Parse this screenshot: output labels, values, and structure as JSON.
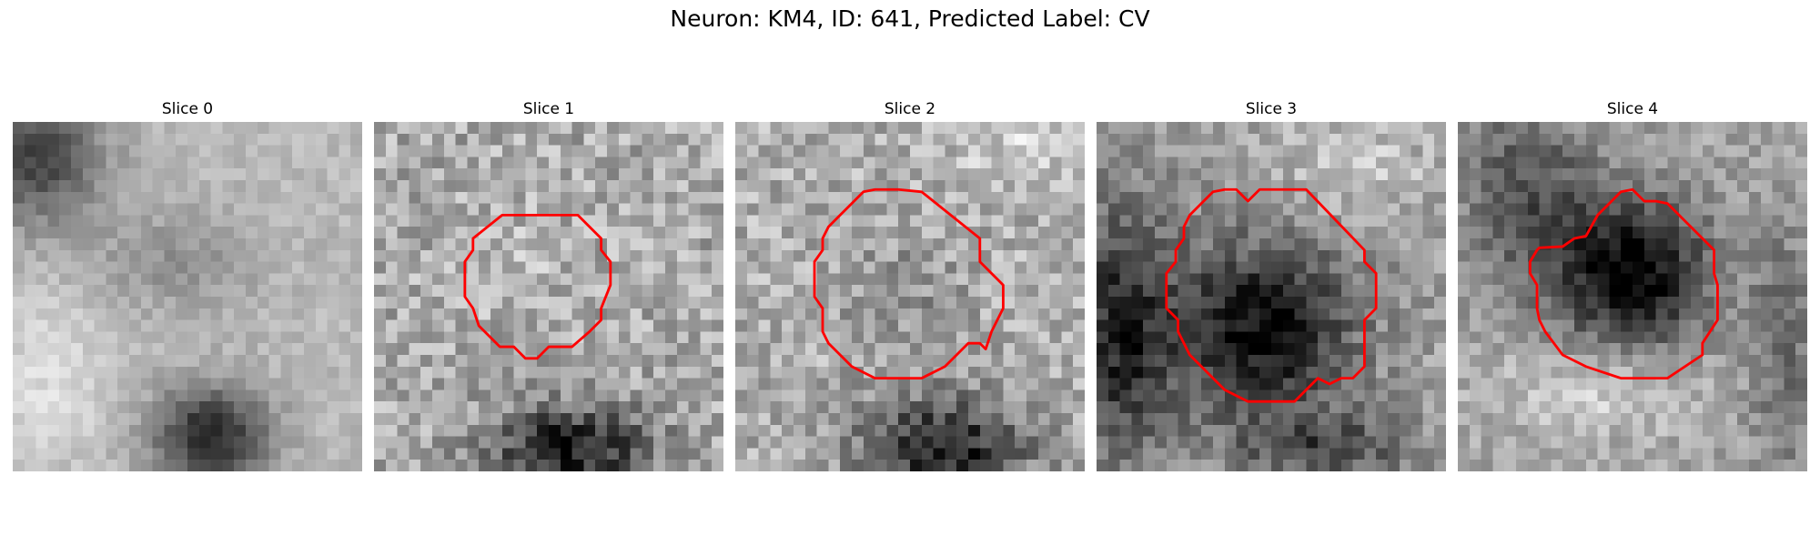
{
  "figure": {
    "title": "Neuron: KM4, ID: 641, Predicted Label: CV",
    "panels": [
      {
        "title": "Slice 0"
      },
      {
        "title": "Slice 1"
      },
      {
        "title": "Slice 2"
      },
      {
        "title": "Slice 3"
      },
      {
        "title": "Slice 4"
      }
    ],
    "colors": {
      "contour": "#ff0000"
    }
  }
}
